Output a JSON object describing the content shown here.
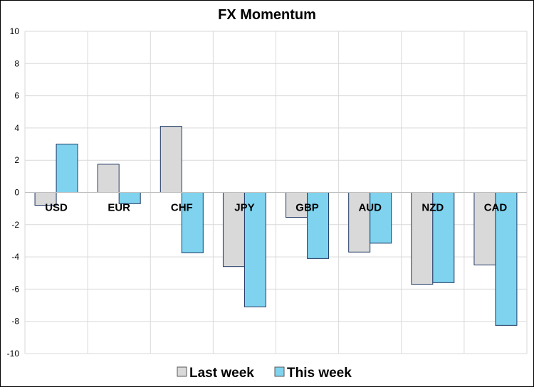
{
  "chart_data": {
    "type": "bar",
    "title": "FX Momentum",
    "categories": [
      "USD",
      "EUR",
      "CHF",
      "JPY",
      "GBP",
      "AUD",
      "NZD",
      "CAD"
    ],
    "series": [
      {
        "name": "Last week",
        "values": [
          -0.8,
          1.75,
          4.1,
          -4.6,
          -1.55,
          -3.7,
          -5.7,
          -4.5
        ],
        "color": "#d9d9d9"
      },
      {
        "name": "This week",
        "values": [
          3.0,
          -0.7,
          -3.75,
          -7.1,
          -4.1,
          -3.15,
          -5.6,
          -8.25
        ],
        "color": "#7fd3ef"
      }
    ],
    "ylim": [
      -10,
      10
    ],
    "yticks": [
      10,
      8,
      6,
      4,
      2,
      0,
      -2,
      -4,
      -6,
      -8,
      -10
    ],
    "grid": true,
    "legend_position": "bottom",
    "bar_border_color": "#1f3864"
  }
}
